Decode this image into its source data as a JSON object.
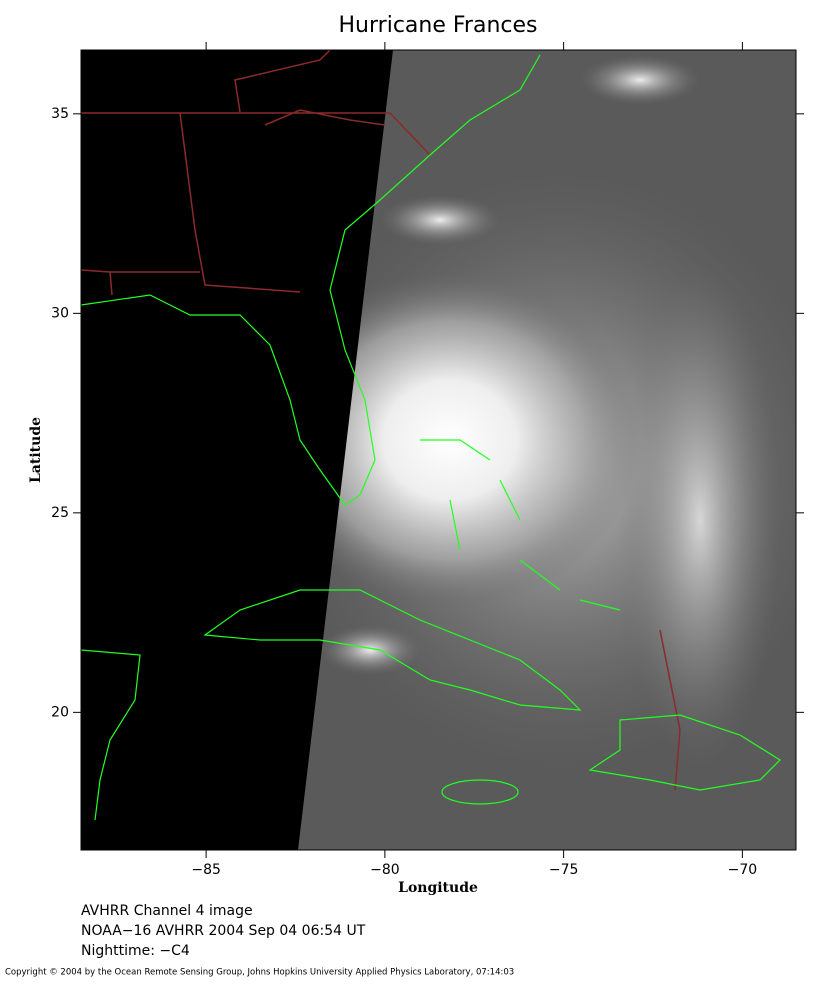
{
  "chart_data": {
    "type": "map",
    "title": "Hurricane Frances",
    "xlabel": "Longitude",
    "ylabel": "Latitude",
    "xlim": [
      -88.5,
      -68.5
    ],
    "ylim": [
      16.55,
      36.6
    ],
    "xticks": [
      {
        "value": -85,
        "label": "−85"
      },
      {
        "value": -80,
        "label": "−80"
      },
      {
        "value": -75,
        "label": "−75"
      },
      {
        "value": -70,
        "label": "−70"
      }
    ],
    "yticks": [
      20,
      25,
      30,
      35
    ],
    "notes": [
      "AVHRR Channel 4 image",
      "NOAA−16 AVHRR 2004 Sep 04 06:54 UT",
      "Nighttime: −C4"
    ],
    "copyright": "Copyright © 2004 by the Ocean Remote Sensing Group, Johns Hopkins University Applied Physics Laboratory, 07:14:03"
  }
}
